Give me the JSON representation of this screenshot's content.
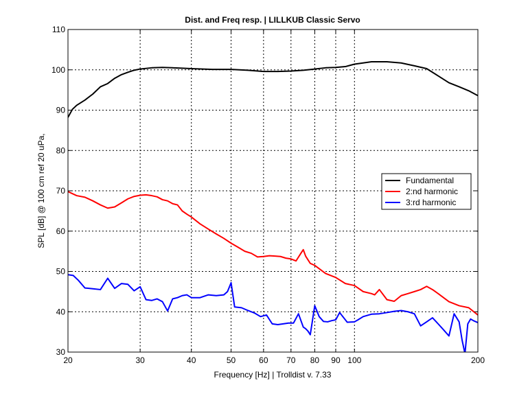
{
  "chart_data": {
    "type": "line",
    "title": "Dist. and Freq resp.  | LILLKUB Classic Servo",
    "xlabel": "Frequency [Hz] | Trolldist v. 7.33",
    "ylabel": "SPL [dB] @ 100 cm ref 20 uPa,",
    "xscale": "log",
    "xlim": [
      20,
      200
    ],
    "ylim": [
      30,
      110
    ],
    "xticks": [
      20,
      30,
      40,
      50,
      60,
      70,
      80,
      90,
      100,
      200
    ],
    "xtick_labels": [
      "20",
      "30",
      "40",
      "50",
      "60",
      "70",
      "80",
      "90",
      "100",
      "200"
    ],
    "yticks": [
      30,
      40,
      50,
      60,
      70,
      80,
      90,
      100,
      110
    ],
    "ytick_labels": [
      "30",
      "40",
      "50",
      "60",
      "70",
      "80",
      "90",
      "100",
      "110"
    ],
    "grid": true,
    "grid_style": "dotted",
    "legend_position": "right",
    "series": [
      {
        "name": "Fundamental",
        "color": "#000000",
        "x": [
          20,
          20.5,
          21,
          22,
          23,
          24,
          25,
          26,
          27,
          28,
          29,
          30,
          32,
          34,
          36,
          38,
          40,
          45,
          50,
          55,
          60,
          65,
          70,
          75,
          80,
          85,
          90,
          95,
          100,
          110,
          120,
          130,
          140,
          150,
          160,
          170,
          180,
          190,
          200
        ],
        "y": [
          88.2,
          90.2,
          91.2,
          92.5,
          94.0,
          95.8,
          96.6,
          97.9,
          98.8,
          99.4,
          99.9,
          100.2,
          100.5,
          100.6,
          100.5,
          100.4,
          100.3,
          100.1,
          100.1,
          99.9,
          99.6,
          99.6,
          99.7,
          99.9,
          100.2,
          100.5,
          100.6,
          100.8,
          101.4,
          102.0,
          102.0,
          101.7,
          101.0,
          100.3,
          98.5,
          96.8,
          95.8,
          94.8,
          93.6
        ]
      },
      {
        "name": "2:nd harmonic",
        "color": "#ff0000",
        "x": [
          20,
          21,
          22,
          23,
          24,
          25,
          26,
          27,
          28,
          29,
          30,
          31,
          32,
          33,
          34,
          35,
          36,
          37,
          38,
          39,
          40,
          42,
          44,
          46,
          48,
          50,
          52,
          54,
          56,
          58,
          60,
          62,
          64,
          66,
          68,
          70,
          72,
          74,
          75,
          76,
          78,
          80,
          85,
          90,
          95,
          100,
          105,
          110,
          112,
          115,
          120,
          125,
          130,
          135,
          140,
          145,
          150,
          155,
          160,
          170,
          180,
          190,
          200
        ],
        "y": [
          69.8,
          68.8,
          68.4,
          67.5,
          66.5,
          65.7,
          66.0,
          67.0,
          68.0,
          68.6,
          68.9,
          69.0,
          68.8,
          68.5,
          67.8,
          67.5,
          66.8,
          66.5,
          65.0,
          64.2,
          63.5,
          61.8,
          60.5,
          59.3,
          58.2,
          57.0,
          56.0,
          55.0,
          54.5,
          53.6,
          53.7,
          53.9,
          53.8,
          53.7,
          53.3,
          53.1,
          52.6,
          54.5,
          55.4,
          53.8,
          52.0,
          51.5,
          49.5,
          48.5,
          47.0,
          46.5,
          45.0,
          44.5,
          44.2,
          45.5,
          43.0,
          42.6,
          44.0,
          44.5,
          45.0,
          45.5,
          46.3,
          45.5,
          44.5,
          42.5,
          41.5,
          41.0,
          39.2
        ]
      },
      {
        "name": "3:rd harmonic",
        "color": "#0000ff",
        "x": [
          20,
          20.6,
          21.2,
          22,
          23,
          24,
          25,
          26,
          27,
          28,
          29,
          30,
          31,
          32,
          33,
          34,
          35,
          36,
          37,
          38,
          39,
          40,
          42,
          44,
          46,
          48,
          49,
          50,
          51,
          53,
          55,
          57,
          59,
          61,
          63,
          65,
          67,
          69,
          71,
          73,
          75,
          76,
          77,
          78,
          80,
          82,
          84,
          86,
          88,
          90,
          92,
          96,
          100,
          102,
          105,
          110,
          115,
          120,
          125,
          130,
          135,
          140,
          145,
          150,
          155,
          160,
          165,
          170,
          175,
          180,
          183,
          186,
          189,
          192,
          195,
          200
        ],
        "y": [
          49.2,
          49.0,
          47.8,
          45.9,
          45.7,
          45.5,
          48.3,
          45.8,
          47.0,
          46.8,
          45.2,
          46.2,
          43.0,
          42.8,
          43.2,
          42.5,
          40.2,
          43.2,
          43.5,
          44.0,
          44.2,
          43.5,
          43.5,
          44.2,
          44.0,
          44.2,
          45.0,
          47.2,
          41.2,
          41.0,
          40.3,
          39.7,
          38.8,
          39.2,
          37.0,
          36.8,
          37.0,
          37.2,
          37.2,
          39.5,
          36.2,
          35.8,
          35.2,
          34.3,
          41.5,
          38.8,
          37.6,
          37.5,
          37.8,
          38.0,
          39.8,
          37.4,
          37.5,
          38.0,
          38.8,
          39.4,
          39.5,
          39.8,
          40.1,
          40.3,
          40.0,
          39.5,
          36.5,
          37.5,
          38.5,
          37.0,
          35.5,
          34.0,
          39.5,
          37.5,
          33.0,
          29.6,
          37.0,
          38.2,
          37.8,
          37.3
        ]
      }
    ]
  }
}
